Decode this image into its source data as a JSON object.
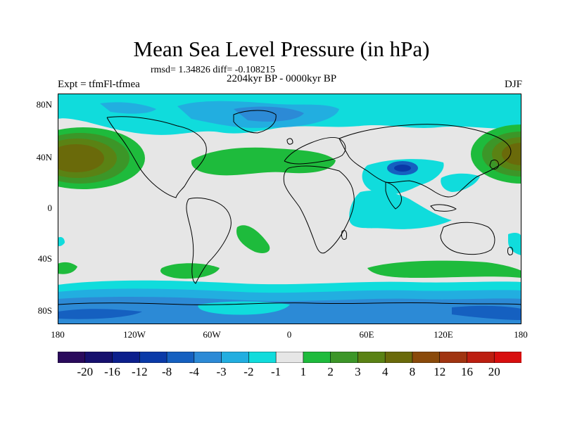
{
  "title": "Mean Sea Level Pressure (in hPa)",
  "stats": "rmsd= 1.34826  diff= -0.108215",
  "experiment": "Expt = tfmFl-tfmea",
  "period": "2204kyr BP - 0000kyr BP",
  "season": "DJF",
  "lat_labels": [
    "80N",
    "40N",
    "0",
    "40S",
    "80S"
  ],
  "lon_labels": [
    "180",
    "120W",
    "60W",
    "0",
    "60E",
    "120E",
    "180"
  ],
  "colorbar": {
    "labels": [
      "-20",
      "-16",
      "-12",
      "-8",
      "-4",
      "-3",
      "-2",
      "-1",
      "1",
      "2",
      "3",
      "4",
      "8",
      "12",
      "16",
      "20"
    ],
    "colors": [
      "#2a0a5c",
      "#16106e",
      "#0c1f8c",
      "#0a3aa8",
      "#1560c0",
      "#2c8ad6",
      "#22aee0",
      "#10dcdc",
      "#e6e6e6",
      "#1ebb3c",
      "#3c9628",
      "#5a8214",
      "#6a6a0a",
      "#8a4a0a",
      "#a03410",
      "#bc1e10",
      "#d80e0e"
    ]
  },
  "colors": {
    "neutral": "#e6e6e6",
    "cyan": "#10dcdc",
    "light_blue": "#22aee0",
    "mid_blue": "#2c8ad6",
    "blue": "#1560c0",
    "dark_blue": "#0a3aa8",
    "green": "#1ebb3c",
    "olive": "#5a8214",
    "brown": "#6a6a0a"
  }
}
